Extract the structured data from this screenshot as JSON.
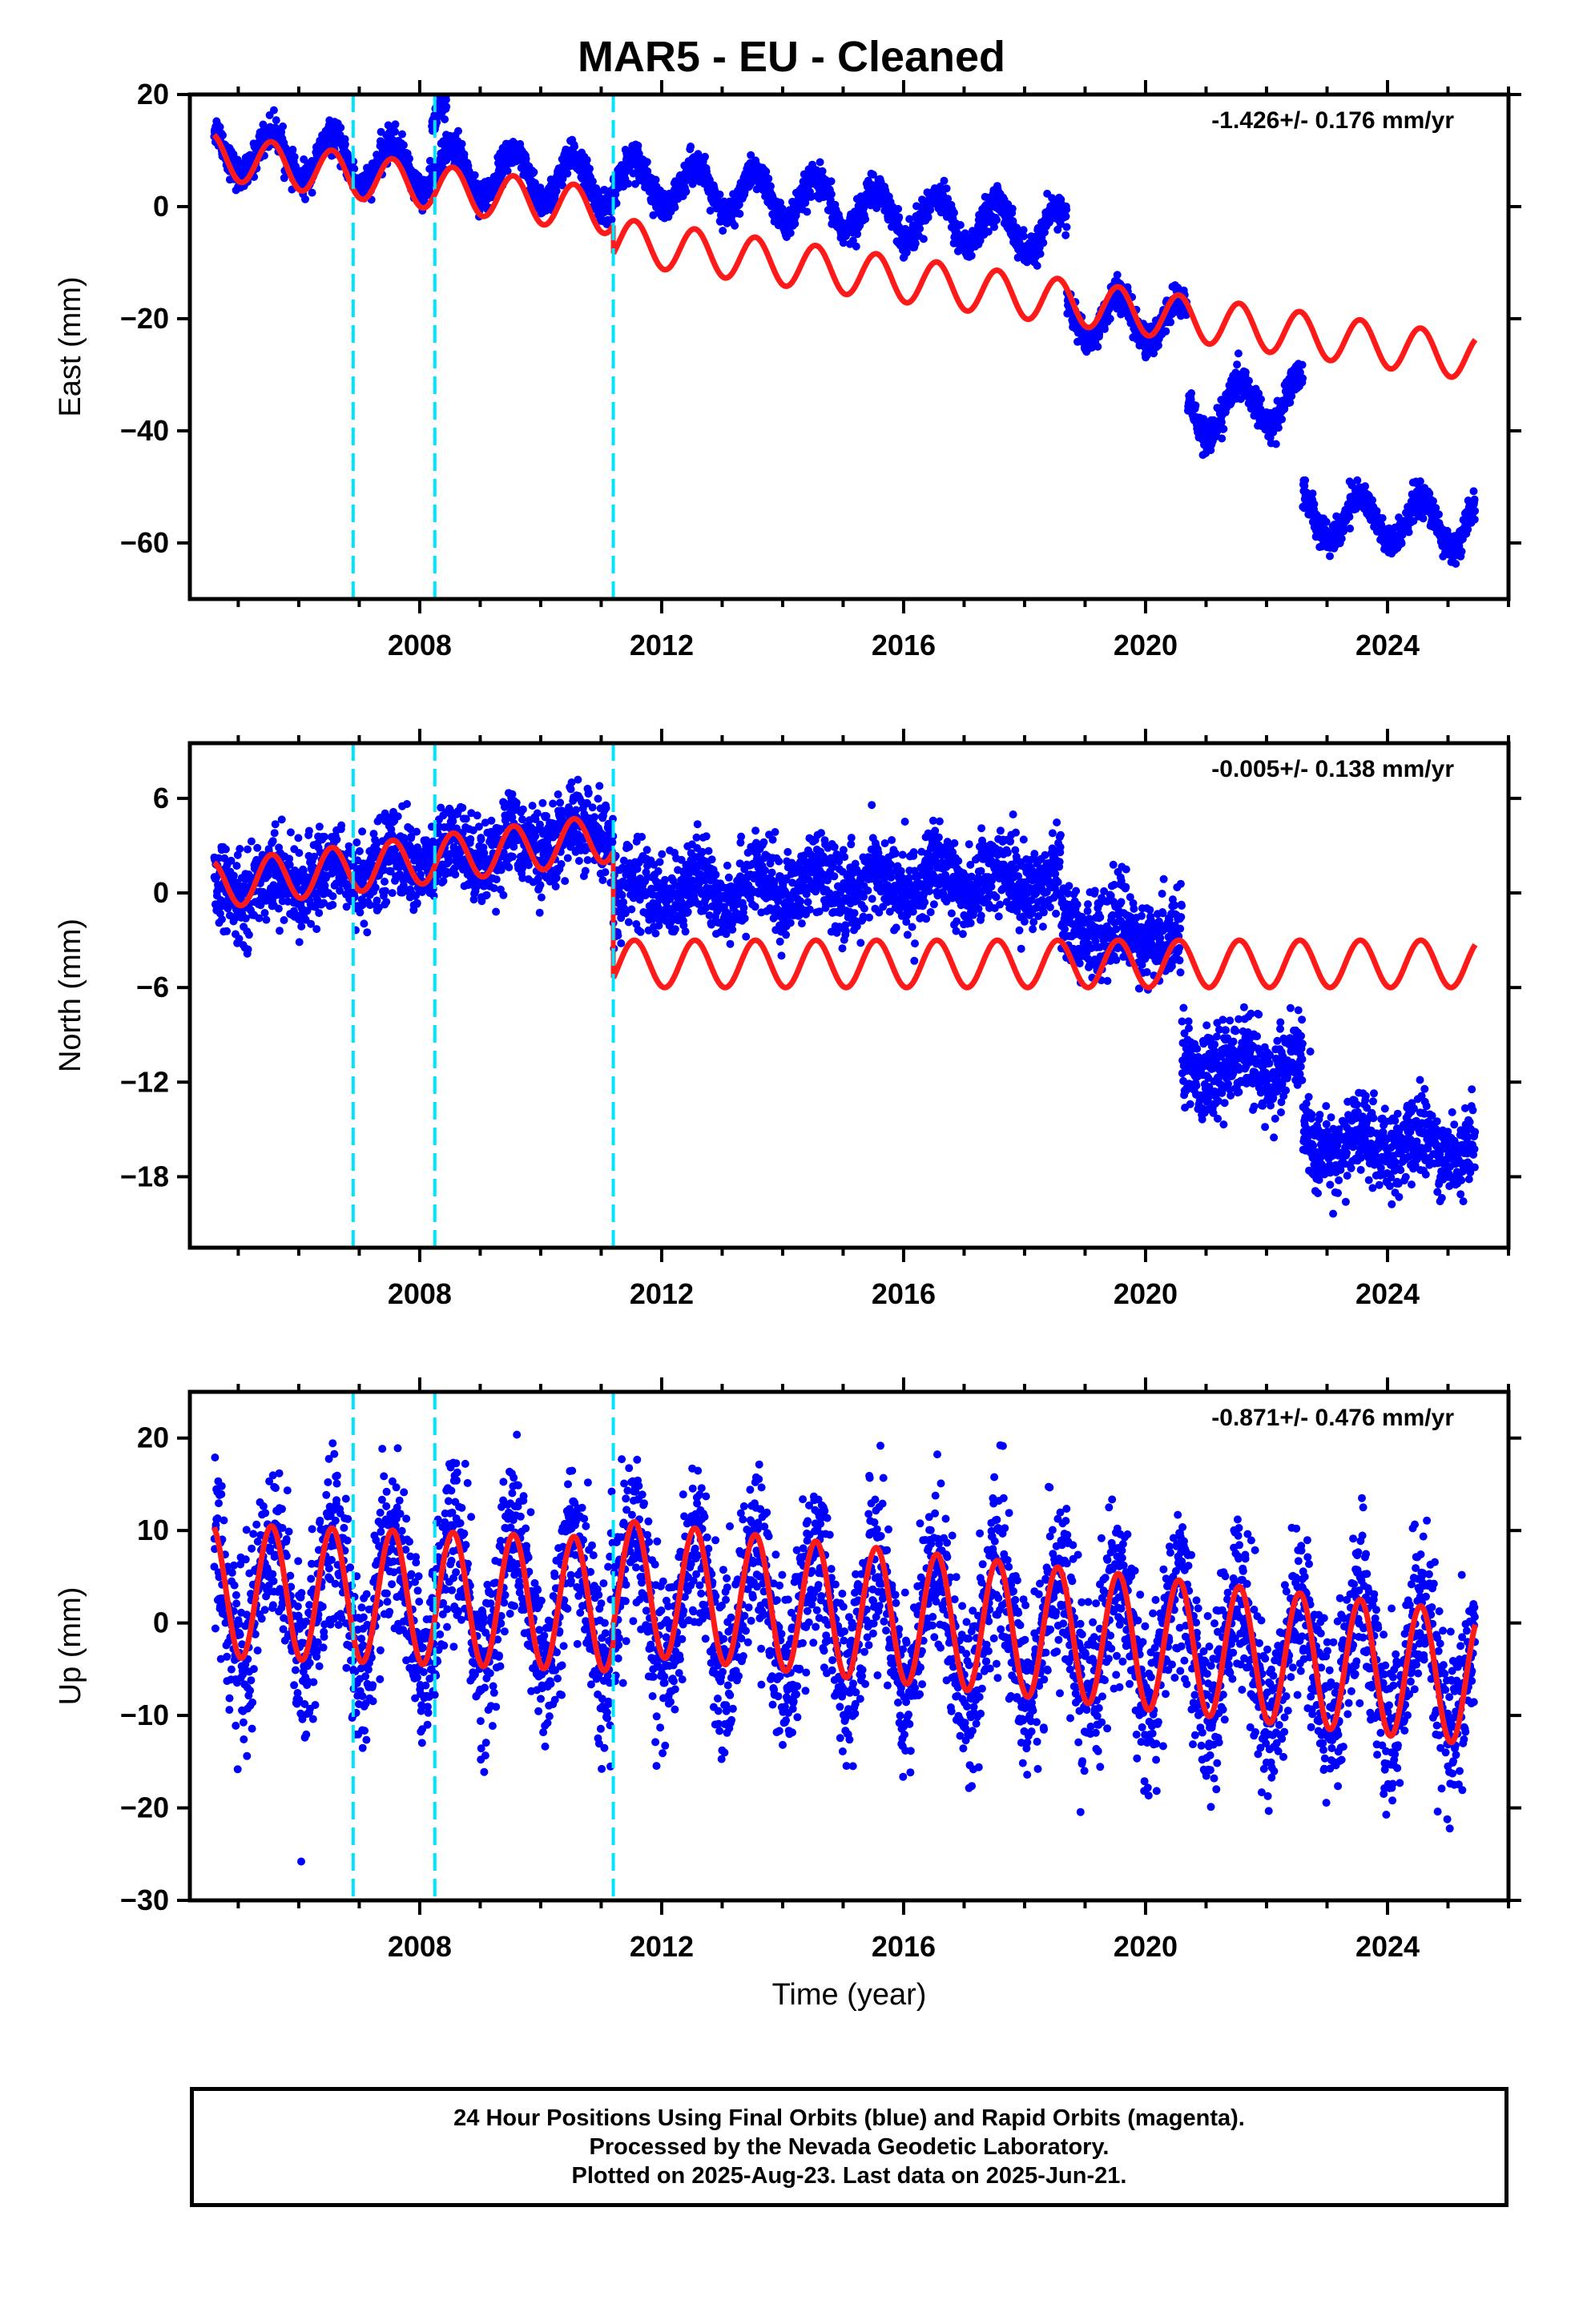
{
  "title": "MAR5  - EU - Cleaned",
  "footer": {
    "line1": "24 Hour Positions Using Final Orbits (blue) and Rapid Orbits (magenta).",
    "line2": "Processed by the Nevada Geodetic Laboratory.",
    "line3": "Plotted on 2025-Aug-23. Last data on 2025-Jun-21."
  },
  "colors": {
    "observed": "#0000ff",
    "model": "#ff1a1a",
    "offset_line": "#00e5ff",
    "axes": "#000000"
  },
  "chart_data": [
    {
      "type": "scatter",
      "name": "east",
      "ylabel": "East (mm)",
      "xlabel": "",
      "rate_label": "-1.426+/- 0.176 mm/yr",
      "xlim": [
        2004.2,
        2026.0
      ],
      "ylim": [
        -70,
        20
      ],
      "xticks": [
        2008,
        2012,
        2016,
        2020,
        2024
      ],
      "yticks": [
        20,
        0,
        -20,
        -40,
        -60
      ],
      "offset_years": [
        2006.9,
        2008.25,
        2011.2
      ],
      "observed": {
        "amplitude": 4.2,
        "scatter": 1.4,
        "segments": [
          {
            "start": 2004.6,
            "end": 2011.2,
            "y_start": 10,
            "y_end": 4
          },
          {
            "start": 2008.2,
            "end": 2008.45,
            "y_start": 16.5,
            "y_end": 16.5
          },
          {
            "start": 2011.2,
            "end": 2018.7,
            "y_start": 5,
            "y_end": -5
          },
          {
            "start": 2018.7,
            "end": 2020.7,
            "y_start": -19,
            "y_end": -21
          },
          {
            "start": 2020.7,
            "end": 2022.6,
            "y_start": -37,
            "y_end": -34
          },
          {
            "start": 2022.6,
            "end": 2025.45,
            "y_start": -55,
            "y_end": -57
          }
        ]
      },
      "model": {
        "amplitude": 4.0,
        "segments": [
          {
            "start": 2004.6,
            "end": 2011.2,
            "y_start": 9,
            "y_end": -1
          },
          {
            "start": 2011.2,
            "end": 2025.45,
            "y_start": -6,
            "y_end": -27
          }
        ]
      }
    },
    {
      "type": "scatter",
      "name": "north",
      "ylabel": "North (mm)",
      "xlabel": "",
      "rate_label": "-0.005+/- 0.138 mm/yr",
      "xlim": [
        2004.2,
        2026.0
      ],
      "ylim": [
        -22.5,
        9.5
      ],
      "xticks": [
        2008,
        2012,
        2016,
        2020,
        2024
      ],
      "yticks": [
        6,
        0,
        -6,
        -12,
        -18
      ],
      "offset_years": [
        2006.9,
        2008.25,
        2011.2
      ],
      "observed": {
        "amplitude": 0.8,
        "scatter": 1.3,
        "segments": [
          {
            "start": 2004.6,
            "end": 2011.2,
            "y_start": 0,
            "y_end": 4
          },
          {
            "start": 2011.2,
            "end": 2018.6,
            "y_start": 0,
            "y_end": 1
          },
          {
            "start": 2018.6,
            "end": 2020.6,
            "y_start": -2,
            "y_end": -3
          },
          {
            "start": 2020.6,
            "end": 2022.6,
            "y_start": -11,
            "y_end": -11
          },
          {
            "start": 2022.6,
            "end": 2025.45,
            "y_start": -16,
            "y_end": -16
          }
        ]
      },
      "model": {
        "amplitude": 1.5,
        "segments": [
          {
            "start": 2004.6,
            "end": 2011.2,
            "y_start": 0.5,
            "y_end": 3.5
          },
          {
            "start": 2011.2,
            "end": 2025.45,
            "y_start": -4.5,
            "y_end": -4.5
          }
        ]
      }
    },
    {
      "type": "scatter",
      "name": "up",
      "ylabel": "Up (mm)",
      "xlabel": "Time (year)",
      "rate_label": "-0.871+/- 0.476 mm/yr",
      "xlim": [
        2004.2,
        2026.0
      ],
      "ylim": [
        -30,
        25
      ],
      "xticks": [
        2008,
        2012,
        2016,
        2020,
        2024
      ],
      "yticks": [
        20,
        10,
        0,
        -10,
        -20,
        -30
      ],
      "offset_years": [
        2006.9,
        2008.25,
        2011.2
      ],
      "observed": {
        "amplitude": 7.0,
        "scatter": 4.5,
        "segments": [
          {
            "start": 2004.6,
            "end": 2011.2,
            "y_start": 3,
            "y_end": 2
          },
          {
            "start": 2011.2,
            "end": 2025.45,
            "y_start": 3,
            "y_end": -6
          }
        ]
      },
      "model": {
        "amplitude": 7.2,
        "segments": [
          {
            "start": 2004.6,
            "end": 2011.2,
            "y_start": 3.5,
            "y_end": 2
          },
          {
            "start": 2011.2,
            "end": 2025.45,
            "y_start": 4,
            "y_end": -6
          }
        ]
      }
    }
  ]
}
